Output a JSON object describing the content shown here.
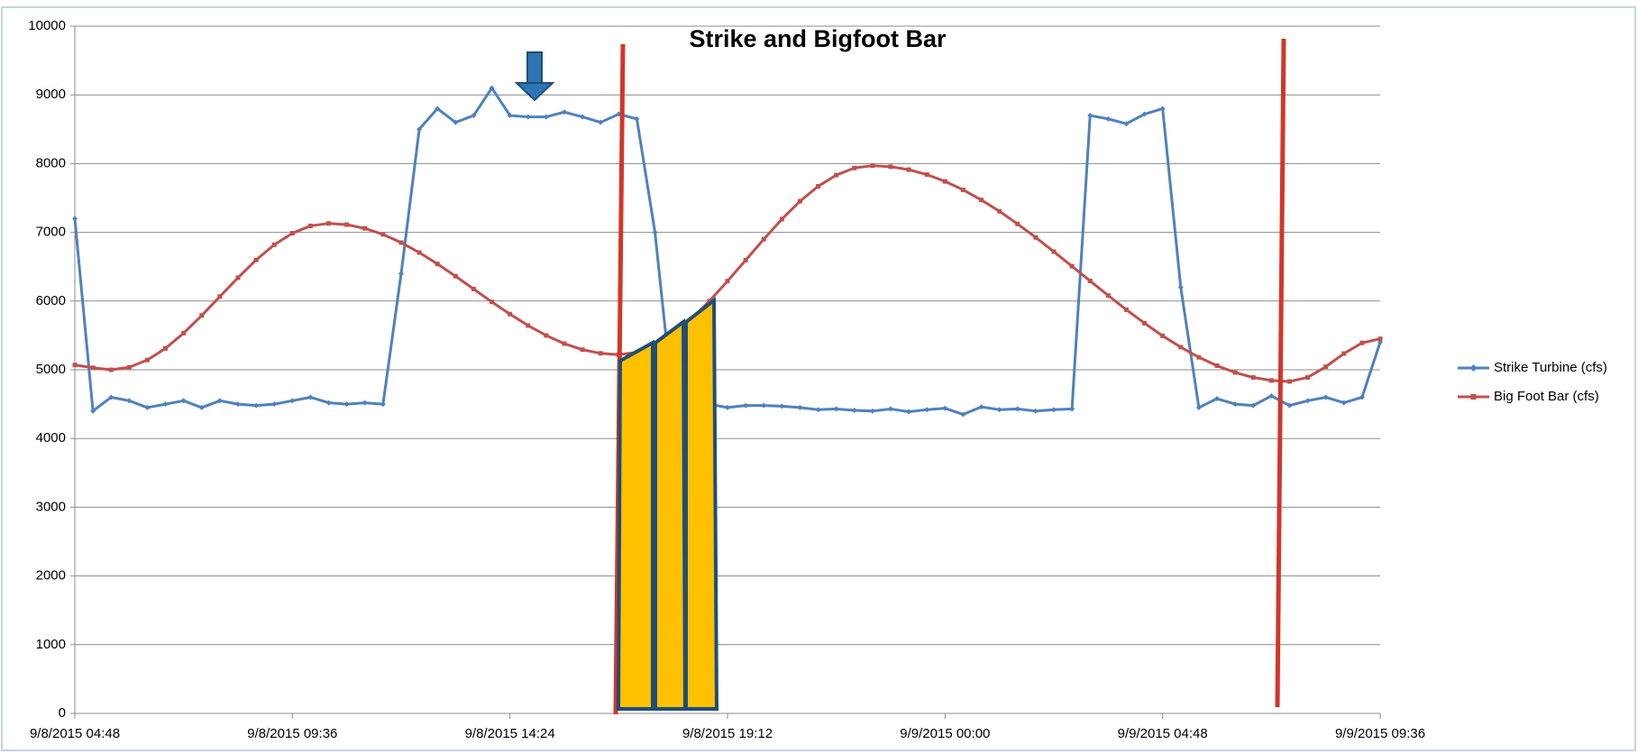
{
  "chart_data": {
    "type": "line",
    "title": "Strike and Bigfoot Bar",
    "x": [
      "9/8/2015 04:48",
      "9/8/2015 05:12",
      "9/8/2015 05:36",
      "9/8/2015 06:00",
      "9/8/2015 06:24",
      "9/8/2015 06:48",
      "9/8/2015 07:12",
      "9/8/2015 07:36",
      "9/8/2015 08:00",
      "9/8/2015 08:24",
      "9/8/2015 08:48",
      "9/8/2015 09:12",
      "9/8/2015 09:36",
      "9/8/2015 10:00",
      "9/8/2015 10:24",
      "9/8/2015 10:48",
      "9/8/2015 11:12",
      "9/8/2015 11:36",
      "9/8/2015 12:00",
      "9/8/2015 12:24",
      "9/8/2015 12:48",
      "9/8/2015 13:12",
      "9/8/2015 13:36",
      "9/8/2015 14:00",
      "9/8/2015 14:24",
      "9/8/2015 14:48",
      "9/8/2015 15:12",
      "9/8/2015 15:36",
      "9/8/2015 16:00",
      "9/8/2015 16:24",
      "9/8/2015 16:48",
      "9/8/2015 17:12",
      "9/8/2015 17:36",
      "9/8/2015 18:00",
      "9/8/2015 18:24",
      "9/8/2015 18:48",
      "9/8/2015 19:12",
      "9/8/2015 19:36",
      "9/8/2015 20:00",
      "9/8/2015 20:24",
      "9/8/2015 20:48",
      "9/8/2015 21:12",
      "9/8/2015 21:36",
      "9/8/2015 22:00",
      "9/8/2015 22:24",
      "9/8/2015 22:48",
      "9/8/2015 23:12",
      "9/8/2015 23:36",
      "9/9/2015 00:00",
      "9/9/2015 00:24",
      "9/9/2015 00:48",
      "9/9/2015 01:12",
      "9/9/2015 01:36",
      "9/9/2015 02:00",
      "9/9/2015 02:24",
      "9/9/2015 02:48",
      "9/9/2015 03:12",
      "9/9/2015 03:36",
      "9/9/2015 04:00",
      "9/9/2015 04:24",
      "9/9/2015 04:48",
      "9/9/2015 05:12",
      "9/9/2015 05:36",
      "9/9/2015 06:00",
      "9/9/2015 06:24",
      "9/9/2015 06:48",
      "9/9/2015 07:12",
      "9/9/2015 07:36",
      "9/9/2015 08:00",
      "9/9/2015 08:24",
      "9/9/2015 08:48",
      "9/9/2015 09:12",
      "9/9/2015 09:36"
    ],
    "series": [
      {
        "name": "Strike Turbine (cfs)",
        "color": "#4f81bd",
        "marker": "diamond",
        "values": [
          7200,
          4400,
          4600,
          4550,
          4450,
          4500,
          4550,
          4450,
          4550,
          4500,
          4480,
          4500,
          4550,
          4600,
          4520,
          4500,
          4520,
          4500,
          6400,
          8500,
          8800,
          8600,
          8700,
          9100,
          8700,
          8680,
          8680,
          8750,
          8680,
          8600,
          8720,
          8650,
          7000,
          4500,
          4500,
          4500,
          4450,
          4480,
          4480,
          4470,
          4450,
          4420,
          4430,
          4410,
          4400,
          4430,
          4390,
          4420,
          4440,
          4350,
          4460,
          4420,
          4430,
          4400,
          4420,
          4430,
          8700,
          8650,
          8580,
          8720,
          8800,
          6200,
          4450,
          4580,
          4500,
          4480,
          4620,
          4480,
          4550,
          4600,
          4520,
          4600,
          5400
        ]
      },
      {
        "name": "Big Foot Bar (cfs)",
        "color": "#c0504d",
        "marker": "square",
        "values": [
          5070,
          5030,
          5000,
          5036,
          5143,
          5311,
          5533,
          5790,
          6065,
          6340,
          6598,
          6819,
          6987,
          7094,
          7130,
          7112,
          7057,
          6970,
          6851,
          6706,
          6540,
          6362,
          6175,
          5988,
          5810,
          5644,
          5499,
          5380,
          5293,
          5239,
          5220,
          5254,
          5358,
          5520,
          5737,
          6000,
          6290,
          6595,
          6900,
          7192,
          7453,
          7670,
          7833,
          7936,
          7970,
          7955,
          7912,
          7840,
          7741,
          7618,
          7471,
          7306,
          7122,
          6926,
          6719,
          6507,
          6293,
          6081,
          5874,
          5678,
          5494,
          5329,
          5182,
          5059,
          4960,
          4888,
          4844,
          4830,
          4889,
          5044,
          5236,
          5391,
          5450
        ]
      }
    ],
    "xlim": [
      "9/8/2015 04:48",
      "9/9/2015 09:36"
    ],
    "xticks": [
      "9/8/2015 04:48",
      "9/8/2015 09:36",
      "9/8/2015 14:24",
      "9/8/2015 19:12",
      "9/9/2015 00:00",
      "9/9/2015 04:48",
      "9/9/2015 09:36"
    ],
    "ylim": [
      0,
      10000
    ],
    "yticks": [
      0,
      1000,
      2000,
      3000,
      4000,
      5000,
      6000,
      7000,
      8000,
      9000,
      10000
    ],
    "grid": true,
    "legend": "right"
  }
}
